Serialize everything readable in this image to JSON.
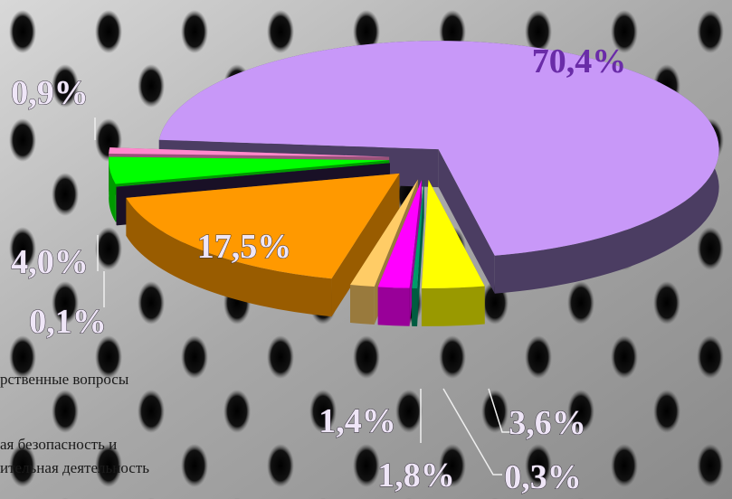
{
  "chart_data": {
    "type": "pie",
    "values": [
      70.4,
      3.6,
      0.3,
      1.8,
      1.4,
      17.5,
      0.1,
      4.0,
      0.9
    ],
    "value_labels": [
      "70,4%",
      "3,6%",
      "0,3%",
      "1,8%",
      "1,4%",
      "17,5%",
      "0,1%",
      "4,0%",
      "0,9%"
    ],
    "colors": [
      "#c898f8",
      "#ffff00",
      "#009a6a",
      "#ff00ff",
      "#ffcc66",
      "#ff9900",
      "#2a1a40",
      "#00ff00",
      "#ff88cc"
    ],
    "annotations": [
      "рственные вопросы",
      "ая безопасность и",
      "ительная деятельность"
    ]
  }
}
